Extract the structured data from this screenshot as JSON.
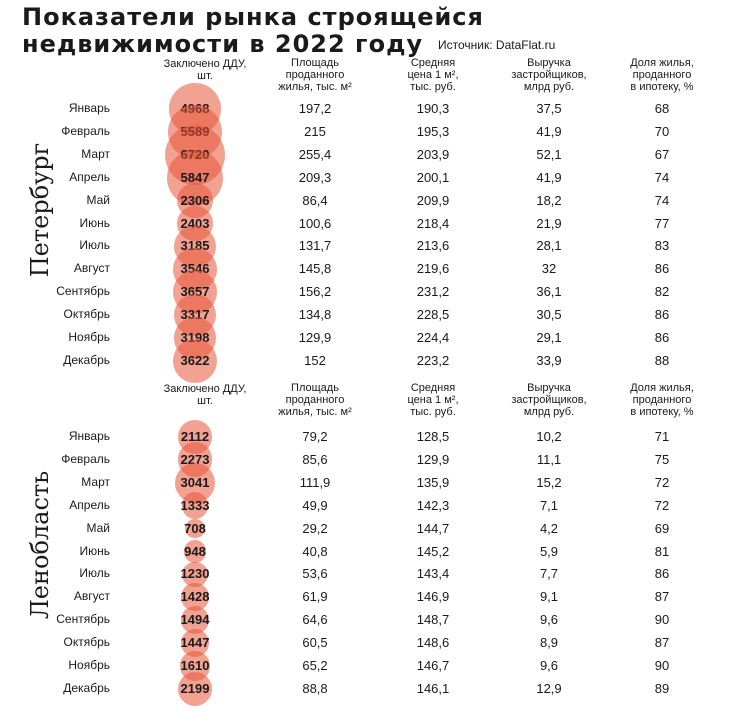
{
  "title_line1": "Показатели рынка строящейся",
  "title_line2": "недвижимости в 2022 году",
  "source": "Источник: DataFlat.ru",
  "colors": {
    "bubble": "#E8563A",
    "text": "#1A1A1A"
  },
  "headers": [
    "Заключено ДДУ,\nшт.",
    "Площадь\nпроданного\nжилья, тыс. м²",
    "Средняя\nцена 1 м²,\nтыс. руб.",
    "Выручка\nзастройщиков,\nмлрд руб.",
    "Доля жилья,\nпроданного\nв ипотеку, %"
  ],
  "headers_leno": [
    "Заключено ДДУ,\nшт.",
    "Площадь\nпроданного\nжилья, тыс. м²",
    "Средняя\nцена 1 м²,\nтыс. руб.",
    "Выручка\nзастройщиков,\nмлрд руб.",
    "Доля жилья,\nпроданного\nв ипотеку, %"
  ],
  "chart_data": {
    "type": "table",
    "sections": [
      {
        "name": "Петербург",
        "rows": [
          {
            "month": "Январь",
            "ddu": "4968",
            "area": "197,2",
            "price": "190,3",
            "revenue": "37,5",
            "mortgage": "68"
          },
          {
            "month": "Февраль",
            "ddu": "5589",
            "area": "215",
            "price": "195,3",
            "revenue": "41,9",
            "mortgage": "70"
          },
          {
            "month": "Март",
            "ddu": "6720",
            "area": "255,4",
            "price": "203,9",
            "revenue": "52,1",
            "mortgage": "67"
          },
          {
            "month": "Апрель",
            "ddu": "5847",
            "area": "209,3",
            "price": "200,1",
            "revenue": "41,9",
            "mortgage": "74"
          },
          {
            "month": "Май",
            "ddu": "2306",
            "area": "86,4",
            "price": "209,9",
            "revenue": "18,2",
            "mortgage": "74"
          },
          {
            "month": "Июнь",
            "ddu": "2403",
            "area": "100,6",
            "price": "218,4",
            "revenue": "21,9",
            "mortgage": "77"
          },
          {
            "month": "Июль",
            "ddu": "3185",
            "area": "131,7",
            "price": "213,6",
            "revenue": "28,1",
            "mortgage": "83"
          },
          {
            "month": "Август",
            "ddu": "3546",
            "area": "145,8",
            "price": "219,6",
            "revenue": "32",
            "mortgage": "86"
          },
          {
            "month": "Сентябрь",
            "ddu": "3657",
            "area": "156,2",
            "price": "231,2",
            "revenue": "36,1",
            "mortgage": "82"
          },
          {
            "month": "Октябрь",
            "ddu": "3317",
            "area": "134,8",
            "price": "228,5",
            "revenue": "30,5",
            "mortgage": "86"
          },
          {
            "month": "Ноябрь",
            "ddu": "3198",
            "area": "129,9",
            "price": "224,4",
            "revenue": "29,1",
            "mortgage": "86"
          },
          {
            "month": "Декабрь",
            "ddu": "3622",
            "area": "152",
            "price": "223,2",
            "revenue": "33,9",
            "mortgage": "88"
          }
        ]
      },
      {
        "name": "Ленобласть",
        "rows": [
          {
            "month": "Январь",
            "ddu": "2112",
            "area": "79,2",
            "price": "128,5",
            "revenue": "10,2",
            "mortgage": "71"
          },
          {
            "month": "Февраль",
            "ddu": "2273",
            "area": "85,6",
            "price": "129,9",
            "revenue": "11,1",
            "mortgage": "75"
          },
          {
            "month": "Март",
            "ddu": "3041",
            "area": "111,9",
            "price": "135,9",
            "revenue": "15,2",
            "mortgage": "72"
          },
          {
            "month": "Апрель",
            "ddu": "1333",
            "area": "49,9",
            "price": "142,3",
            "revenue": "7,1",
            "mortgage": "72"
          },
          {
            "month": "Май",
            "ddu": "708",
            "area": "29,2",
            "price": "144,7",
            "revenue": "4,2",
            "mortgage": "69"
          },
          {
            "month": "Июнь",
            "ddu": "948",
            "area": "40,8",
            "price": "145,2",
            "revenue": "5,9",
            "mortgage": "81"
          },
          {
            "month": "Июль",
            "ddu": "1230",
            "area": "53,6",
            "price": "143,4",
            "revenue": "7,7",
            "mortgage": "86"
          },
          {
            "month": "Август",
            "ddu": "1428",
            "area": "61,9",
            "price": "146,9",
            "revenue": "9,1",
            "mortgage": "87"
          },
          {
            "month": "Сентябрь",
            "ddu": "1494",
            "area": "64,6",
            "price": "148,7",
            "revenue": "9,6",
            "mortgage": "90"
          },
          {
            "month": "Октябрь",
            "ddu": "1447",
            "area": "60,5",
            "price": "148,6",
            "revenue": "8,9",
            "mortgage": "87"
          },
          {
            "month": "Ноябрь",
            "ddu": "1610",
            "area": "65,2",
            "price": "146,7",
            "revenue": "9,6",
            "mortgage": "90"
          },
          {
            "month": "Декабрь",
            "ddu": "2199",
            "area": "88,8",
            "price": "146,1",
            "revenue": "12,9",
            "mortgage": "89"
          }
        ]
      }
    ]
  }
}
